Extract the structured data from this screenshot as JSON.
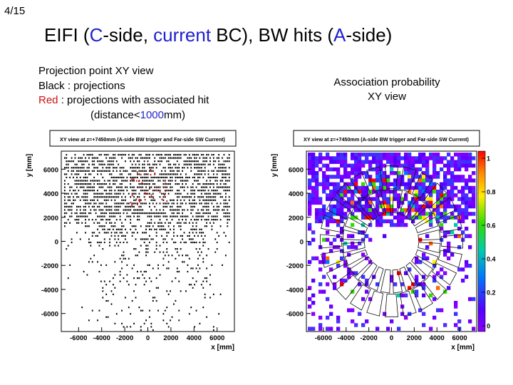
{
  "page_number": "4/15",
  "title": {
    "p1": "EIFI (",
    "c": "C",
    "p2": "-side, ",
    "current": "current",
    "p3": " BC), BW hits (",
    "a": "A",
    "p4": "-side)"
  },
  "left_caption": {
    "line1": "Projection point XY view",
    "line2": "Black : projections",
    "line3_red": "Red",
    "line3_rest": " : projections with associated hit",
    "line4_pre": "(distance<",
    "line4_num": "1000",
    "line4_post": "mm)"
  },
  "right_caption": {
    "line1": "Association probability",
    "line2": "XY view"
  },
  "colors": {
    "title_blue": "#1f1fcf",
    "red": "#d01010"
  },
  "chart_data": [
    {
      "type": "scatter",
      "title": "XY view at z=+7450mm (A-side BW trigger and Far-side SW Current)",
      "xlabel": "x [mm]",
      "ylabel": "y [mm]",
      "xlim": [
        -7500,
        7500
      ],
      "ylim": [
        -7500,
        7500
      ],
      "x_ticks": [
        "-6000",
        "-4000",
        "-2000",
        "0",
        "2000",
        "4000",
        "6000"
      ],
      "y_ticks": [
        "6000",
        "4000",
        "2000",
        "0",
        "-2000",
        "-4000",
        "-6000"
      ],
      "series": [
        {
          "color": "#000000",
          "description": "projections, dense grid of points across upper half, sparse below"
        },
        {
          "color": "#d01010",
          "description": "projections with associated hit, small cluster near x=0, y=4500"
        }
      ]
    },
    {
      "type": "heatmap",
      "title": "XY view at z=+7450mm (A-side BW trigger and Far-side SW Current)",
      "xlabel": "x [mm]",
      "ylabel": "y [mm]",
      "xlim": [
        -7500,
        7500
      ],
      "ylim": [
        -7500,
        7500
      ],
      "x_ticks": [
        "-6000",
        "-4000",
        "-2000",
        "0",
        "2000",
        "4000",
        "6000"
      ],
      "y_ticks": [
        "6000",
        "4000",
        "2000",
        "0",
        "-2000",
        "-4000",
        "-6000"
      ],
      "z_range": [
        0,
        1
      ],
      "colorbar_ticks": [
        "1",
        "0.8",
        "0.6",
        "0.4",
        "0.2",
        "0"
      ],
      "colorbar_colors": [
        "#ff0000",
        "#ff8800",
        "#ffee00",
        "#33dd00",
        "#00ccaa",
        "#0077ff",
        "#5500ff",
        "#8800ff"
      ]
    }
  ]
}
